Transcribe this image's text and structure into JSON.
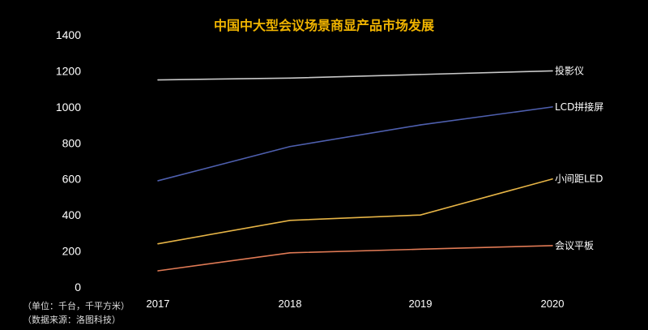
{
  "chart_data": {
    "type": "line",
    "title": "中国中大型会议场景商显产品市场发展",
    "categories": [
      "2017",
      "2018",
      "2019",
      "2020"
    ],
    "ylim": [
      0,
      1400
    ],
    "yticks": [
      0,
      200,
      400,
      600,
      800,
      1000,
      1200,
      1400
    ],
    "grid": false,
    "legend": "labels at line ends",
    "series": [
      {
        "name": "投影仪",
        "values": [
          1150,
          1160,
          1180,
          1200
        ],
        "color": "#c8c8c8"
      },
      {
        "name": "LCD拼接屏",
        "values": [
          590,
          780,
          900,
          1000
        ],
        "color": "#4e5fae"
      },
      {
        "name": "小间距LED",
        "values": [
          240,
          370,
          400,
          600
        ],
        "color": "#e6b446"
      },
      {
        "name": "会议平板",
        "values": [
          90,
          190,
          210,
          230
        ],
        "color": "#e07a55"
      }
    ],
    "title_color": "#f0b400"
  },
  "notes": {
    "unit": "（单位：千台，千平方米）",
    "source": "（数据来源：洛图科技）"
  }
}
